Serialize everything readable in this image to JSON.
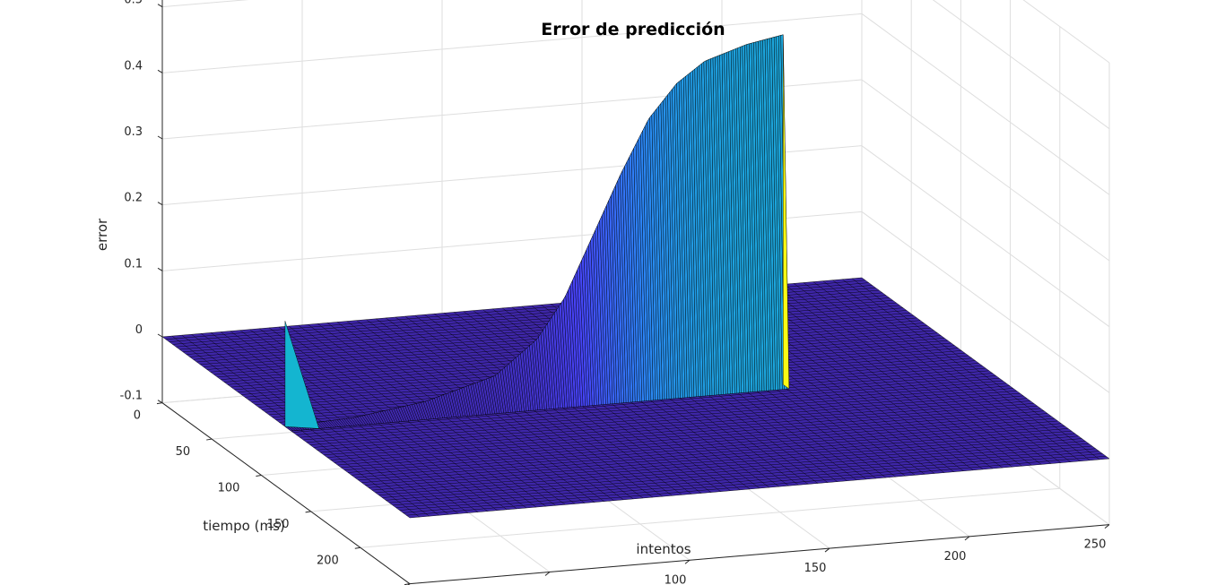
{
  "chart_data": {
    "type": "surface",
    "title": "Error de predicción",
    "xlabel": "intentos",
    "ylabel": "tiempo (ms)",
    "zlabel": "error",
    "xlim": [
      0,
      250
    ],
    "ylim": [
      0,
      250
    ],
    "zlim": [
      -0.1,
      0.6
    ],
    "xticks": [
      "0",
      "50",
      "100",
      "150",
      "200",
      "250"
    ],
    "yticks": [
      "0",
      "50",
      "100",
      "150",
      "200",
      "250"
    ],
    "zticks": [
      "-0.1",
      "0",
      "0.1",
      "0.2",
      "0.3",
      "0.4",
      "0.5",
      "0.6"
    ],
    "grid": true,
    "colormap": [
      "#3e26a8",
      "#4743f8",
      "#2c84f7",
      "#14b5d0",
      "#45c98e",
      "#a9c22f",
      "#f2b73c",
      "#f9d72f",
      "#f9fb15"
    ],
    "surface": {
      "x_range": [
        0,
        250
      ],
      "y_range": [
        0,
        250
      ],
      "pulse_y": 124,
      "pulse_y_end": 130,
      "pulse_x_end": 178,
      "ridge": [
        {
          "x": 0,
          "error": 0.0
        },
        {
          "x": 25,
          "error": 0.005
        },
        {
          "x": 50,
          "error": 0.02
        },
        {
          "x": 75,
          "error": 0.05
        },
        {
          "x": 90,
          "error": 0.1
        },
        {
          "x": 100,
          "error": 0.16
        },
        {
          "x": 110,
          "error": 0.25
        },
        {
          "x": 120,
          "error": 0.34
        },
        {
          "x": 130,
          "error": 0.42
        },
        {
          "x": 140,
          "error": 0.47
        },
        {
          "x": 150,
          "error": 0.5
        },
        {
          "x": 165,
          "error": 0.52
        },
        {
          "x": 178,
          "error": 0.53
        }
      ],
      "early_spike": {
        "x": [
          0,
          10
        ],
        "error": 0.04,
        "color": "#14b5d0"
      }
    }
  }
}
